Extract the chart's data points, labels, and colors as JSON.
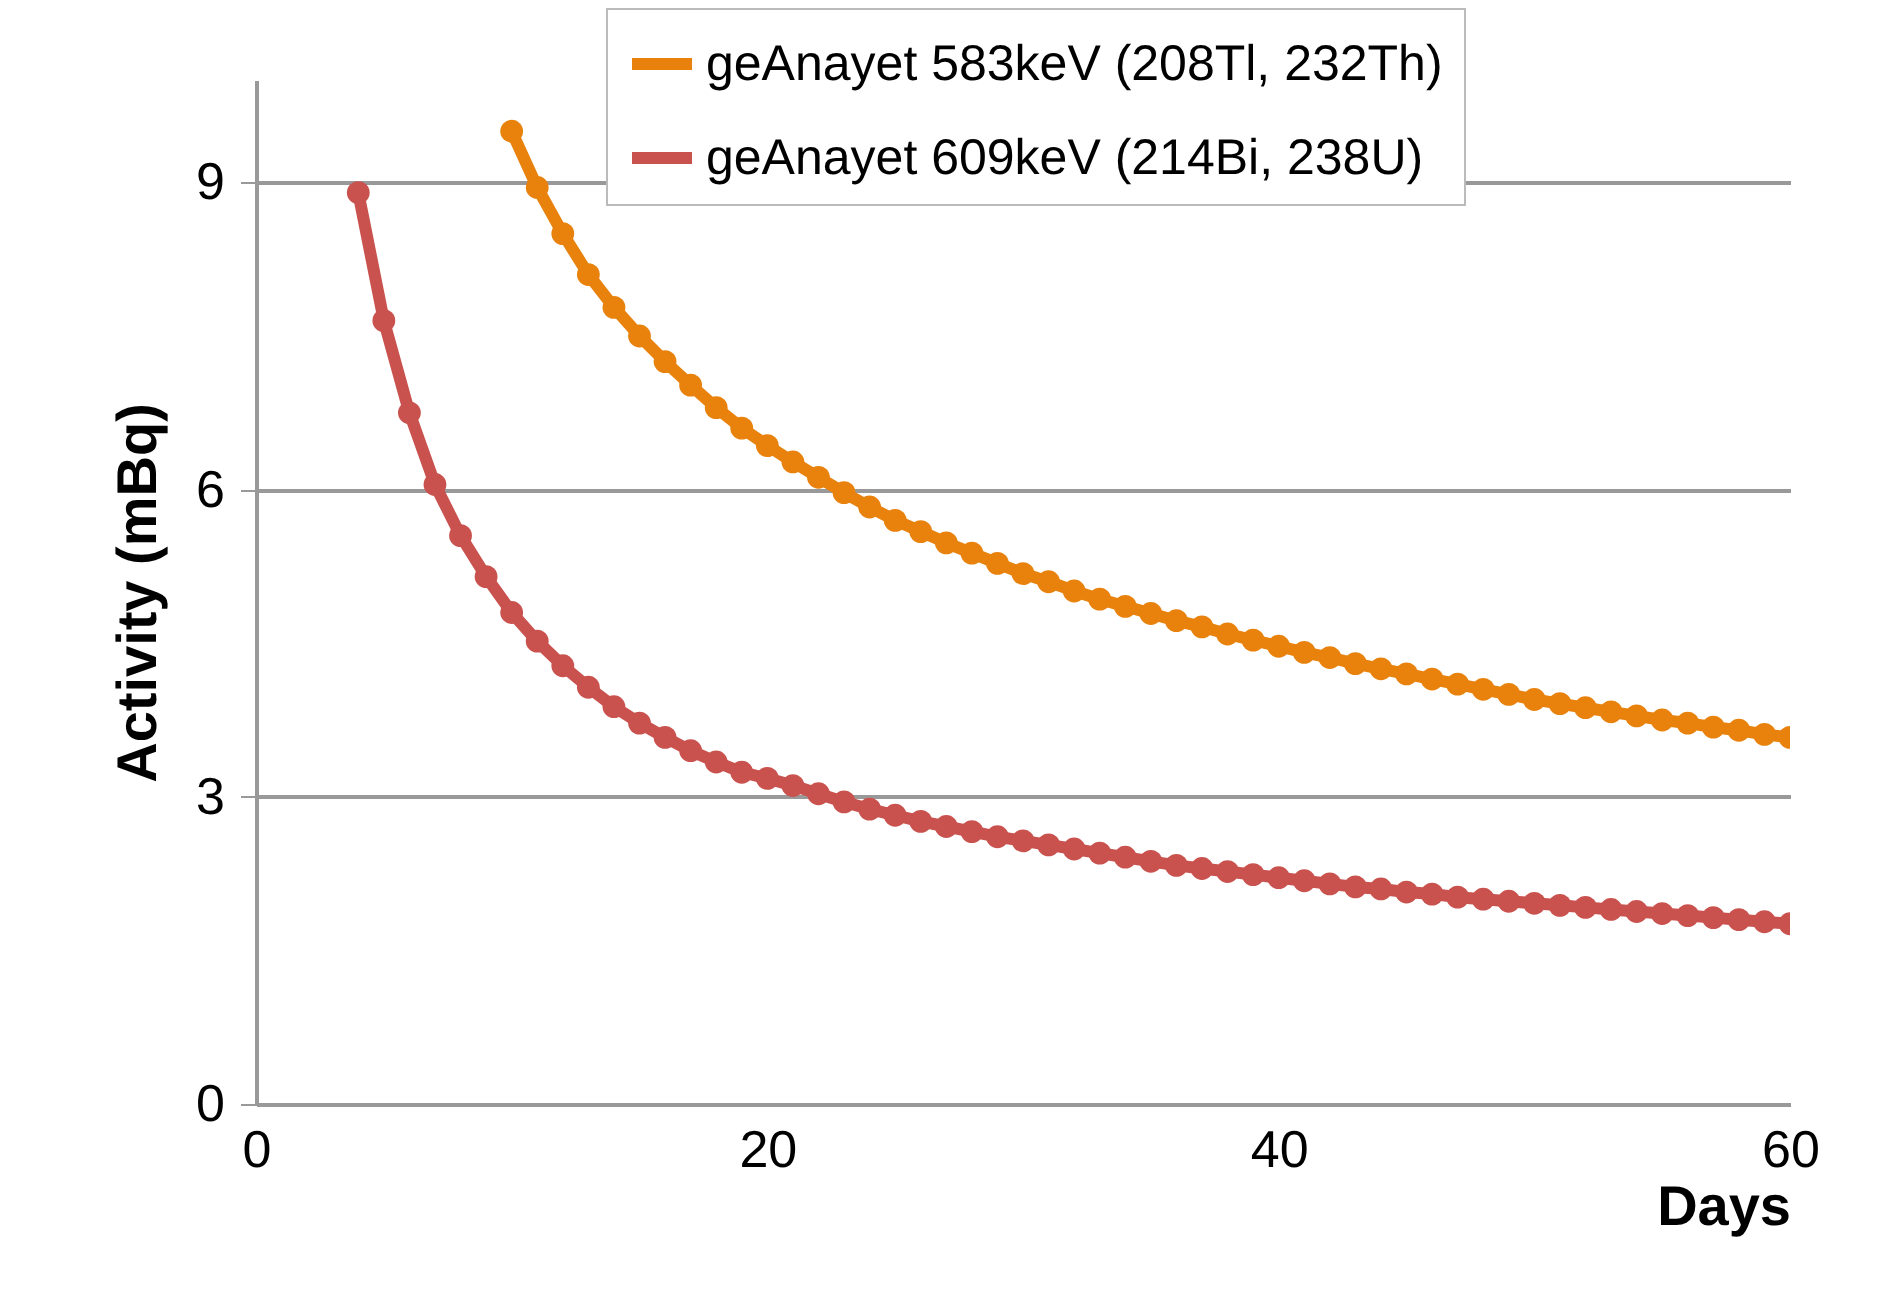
{
  "chart_data": {
    "type": "line",
    "xlabel": "Days",
    "ylabel": "Activity (mBq)",
    "xlim": [
      0,
      60
    ],
    "xticks": [
      0,
      20,
      40,
      60
    ],
    "ylim": [
      0,
      10
    ],
    "yticks": [
      0,
      3,
      6,
      9
    ],
    "grid": "y",
    "legend": "top right",
    "marker": "circle",
    "line_style": "solid",
    "series": [
      {
        "name": "geAnayet 583keV (208Tl, 232Th)",
        "color": "#e8820c",
        "x": [
          10,
          11,
          12,
          13,
          14,
          15,
          16,
          17,
          18,
          19,
          20,
          21,
          22,
          23,
          24,
          25,
          26,
          27,
          28,
          29,
          30,
          31,
          32,
          33,
          34,
          35,
          36,
          37,
          38,
          39,
          40,
          41,
          42,
          43,
          44,
          45,
          46,
          47,
          48,
          49,
          50,
          51,
          52,
          53,
          54,
          55,
          56,
          57,
          58,
          59,
          60
        ],
        "values": [
          9.5,
          8.95,
          8.5,
          8.1,
          7.78,
          7.5,
          7.25,
          7.02,
          6.8,
          6.6,
          6.43,
          6.27,
          6.12,
          5.97,
          5.83,
          5.7,
          5.59,
          5.48,
          5.38,
          5.28,
          5.18,
          5.1,
          5.01,
          4.93,
          4.86,
          4.79,
          4.72,
          4.66,
          4.59,
          4.53,
          4.47,
          4.41,
          4.36,
          4.3,
          4.25,
          4.2,
          4.15,
          4.1,
          4.05,
          4.0,
          3.95,
          3.91,
          3.87,
          3.83,
          3.79,
          3.75,
          3.72,
          3.68,
          3.65,
          3.61,
          3.58
        ]
      },
      {
        "name": "geAnayet 609keV (214Bi, 238U)",
        "color": "#c9524e",
        "x": [
          4,
          5,
          6,
          7,
          8,
          9,
          10,
          11,
          12,
          13,
          14,
          15,
          16,
          17,
          18,
          19,
          20,
          21,
          22,
          23,
          24,
          25,
          26,
          27,
          28,
          29,
          30,
          31,
          32,
          33,
          34,
          35,
          36,
          37,
          38,
          39,
          40,
          41,
          42,
          43,
          44,
          45,
          46,
          47,
          48,
          49,
          50,
          51,
          52,
          53,
          54,
          55,
          56,
          57,
          58,
          59,
          60
        ],
        "values": [
          8.9,
          7.65,
          6.75,
          6.05,
          5.55,
          5.15,
          4.8,
          4.52,
          4.28,
          4.07,
          3.88,
          3.72,
          3.58,
          3.45,
          3.34,
          3.24,
          3.18,
          3.11,
          3.03,
          2.95,
          2.88,
          2.82,
          2.76,
          2.71,
          2.66,
          2.61,
          2.57,
          2.53,
          2.49,
          2.45,
          2.41,
          2.37,
          2.33,
          2.3,
          2.27,
          2.24,
          2.21,
          2.18,
          2.15,
          2.12,
          2.1,
          2.07,
          2.05,
          2.02,
          2.0,
          1.98,
          1.96,
          1.94,
          1.92,
          1.9,
          1.88,
          1.86,
          1.84,
          1.82,
          1.8,
          1.78,
          1.76
        ]
      }
    ]
  }
}
